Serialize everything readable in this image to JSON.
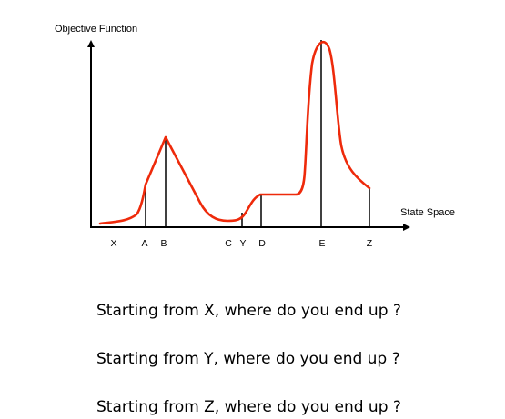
{
  "diagram": {
    "y_axis_label": "Objective Function",
    "x_axis_label": "State Space",
    "points": [
      "X",
      "A",
      "B",
      "C",
      "Y",
      "D",
      "E",
      "Z"
    ],
    "curve_color": "#ee2a0b",
    "line_color": "#000000"
  },
  "questions": [
    "Starting from X, where do you end up ?",
    "Starting from Y, where do you end up ?",
    "Starting from Z, where do you end up ?"
  ]
}
